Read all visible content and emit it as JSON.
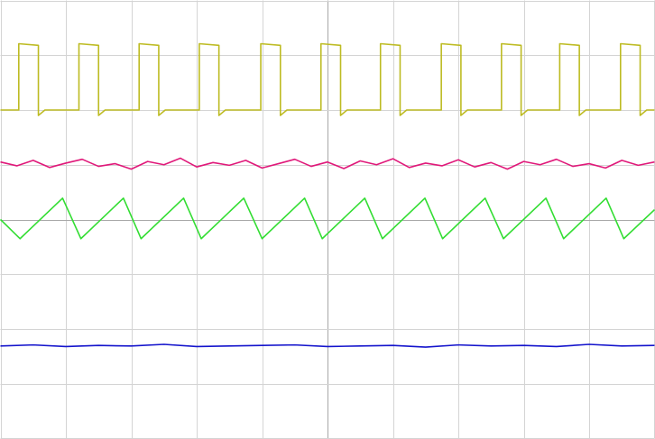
{
  "chart_data": {
    "type": "line",
    "grid": true,
    "xlim": [
      0,
      10
    ],
    "ylim": [
      -4,
      4
    ],
    "xticks": [
      0,
      1,
      2,
      3,
      4,
      5,
      6,
      7,
      8,
      9,
      10
    ],
    "yticks": [
      -4,
      -3,
      -2,
      -1,
      0,
      1,
      2,
      3,
      4
    ],
    "series": [
      {
        "color": "#bdbb22",
        "x": [
          0,
          0.28,
          0.28,
          0.58,
          0.58,
          0.68,
          1.2,
          1.2,
          1.5,
          1.5,
          1.6,
          2.12,
          2.12,
          2.42,
          2.42,
          2.52,
          3.04,
          3.04,
          3.34,
          3.34,
          3.44,
          3.98,
          3.98,
          4.28,
          4.28,
          4.38,
          4.9,
          4.9,
          5.2,
          5.2,
          5.3,
          5.81,
          5.81,
          6.11,
          6.11,
          6.21,
          6.74,
          6.74,
          7.04,
          7.04,
          7.14,
          7.66,
          7.66,
          7.96,
          7.96,
          8.06,
          8.55,
          8.55,
          8.85,
          8.85,
          8.95,
          9.48,
          9.48,
          9.78,
          9.78,
          9.88,
          10
        ],
        "values": [
          2.0,
          2.0,
          3.21,
          3.18,
          1.9,
          2.0,
          2.0,
          3.21,
          3.18,
          1.9,
          2.0,
          2.0,
          3.21,
          3.18,
          1.9,
          2.0,
          2.0,
          3.21,
          3.18,
          1.9,
          2.0,
          2.0,
          3.21,
          3.18,
          1.9,
          2.0,
          2.0,
          3.21,
          3.18,
          1.9,
          2.0,
          2.0,
          3.21,
          3.18,
          1.9,
          2.0,
          2.0,
          3.21,
          3.18,
          1.9,
          2.0,
          2.0,
          3.21,
          3.18,
          1.9,
          2.0,
          2.0,
          3.21,
          3.18,
          1.9,
          2.0,
          2.0,
          3.21,
          3.18,
          1.9,
          2.0,
          2.0
        ]
      },
      {
        "color": "#e0197a",
        "x": [
          0,
          0.25,
          0.5,
          0.75,
          1,
          1.25,
          1.5,
          1.75,
          2,
          2.25,
          2.5,
          2.75,
          3,
          3.25,
          3.5,
          3.75,
          4,
          4.25,
          4.5,
          4.75,
          5,
          5.25,
          5.5,
          5.75,
          6,
          6.25,
          6.5,
          6.75,
          7,
          7.25,
          7.5,
          7.75,
          8,
          8.25,
          8.5,
          8.75,
          9,
          9.25,
          9.5,
          9.75,
          10
        ],
        "values": [
          1.05,
          0.98,
          1.08,
          0.95,
          1.03,
          1.1,
          0.97,
          1.02,
          0.92,
          1.06,
          1.0,
          1.12,
          0.96,
          1.04,
          0.99,
          1.08,
          0.94,
          1.02,
          1.1,
          0.97,
          1.05,
          0.93,
          1.07,
          1.0,
          1.11,
          0.95,
          1.03,
          0.98,
          1.09,
          0.96,
          1.04,
          0.92,
          1.06,
          1.0,
          1.1,
          0.97,
          1.02,
          0.94,
          1.08,
          0.99,
          1.05
        ]
      },
      {
        "color": "#33dd33",
        "x": [
          0,
          0.3,
          0.95,
          1.23,
          1.88,
          2.15,
          2.8,
          3.07,
          3.72,
          4.0,
          4.65,
          4.92,
          5.57,
          5.84,
          6.49,
          6.76,
          7.41,
          7.69,
          8.34,
          8.61,
          9.26,
          9.53,
          10
        ],
        "values": [
          0,
          -0.35,
          0.39,
          -0.35,
          0.39,
          -0.35,
          0.39,
          -0.35,
          0.39,
          -0.35,
          0.39,
          -0.35,
          0.39,
          -0.35,
          0.39,
          -0.35,
          0.39,
          -0.35,
          0.39,
          -0.35,
          0.39,
          -0.35,
          0.18
        ]
      },
      {
        "color": "#1414cc",
        "x": [
          0,
          0.5,
          1,
          1.5,
          2,
          2.5,
          3,
          3.5,
          4,
          4.5,
          5,
          5.5,
          6,
          6.5,
          7,
          7.5,
          8,
          8.5,
          9,
          9.5,
          10
        ],
        "values": [
          -2.31,
          -2.29,
          -2.32,
          -2.3,
          -2.31,
          -2.28,
          -2.32,
          -2.31,
          -2.3,
          -2.29,
          -2.32,
          -2.31,
          -2.3,
          -2.33,
          -2.29,
          -2.31,
          -2.3,
          -2.32,
          -2.28,
          -2.31,
          -2.3
        ]
      }
    ]
  }
}
